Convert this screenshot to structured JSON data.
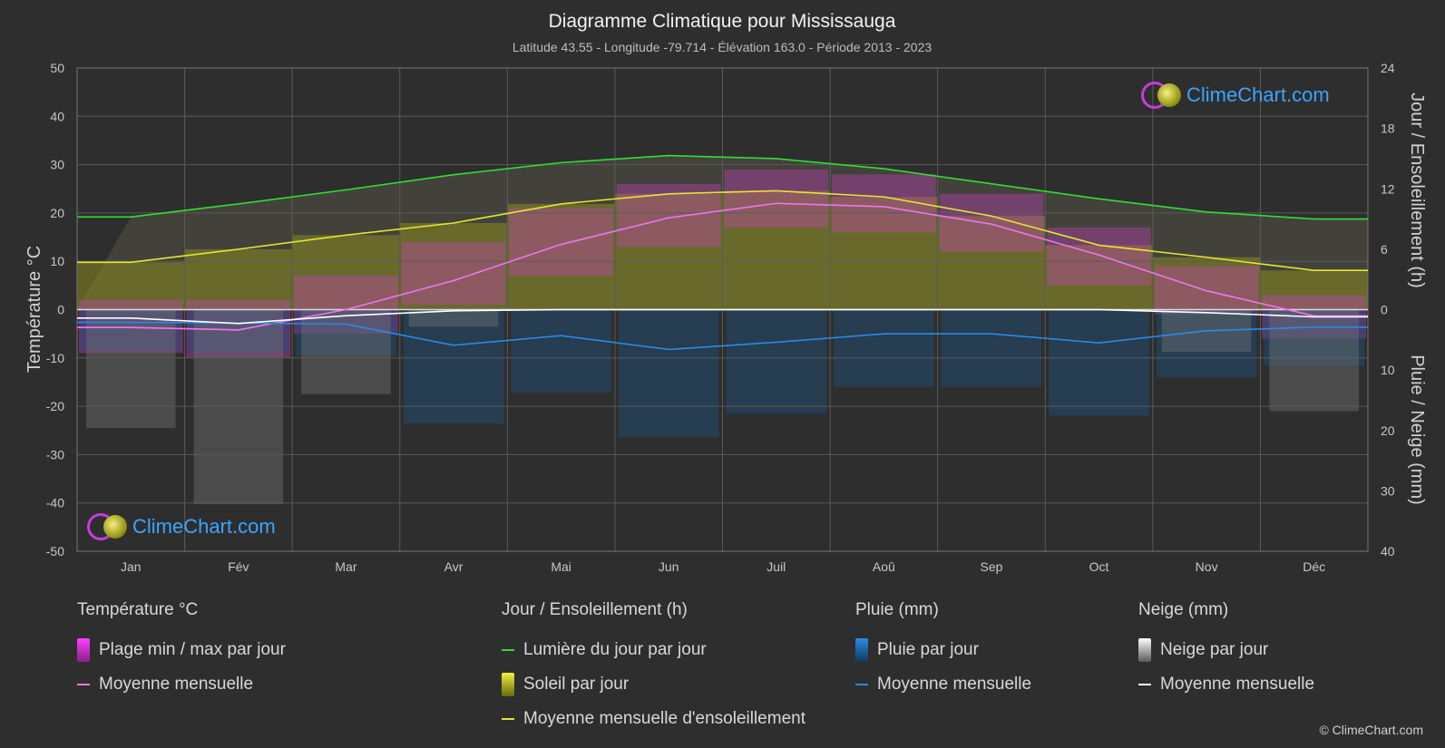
{
  "title": "Diagramme Climatique pour Mississauga",
  "subtitle": "Latitude 43.55 - Longitude -79.714 - Élévation 163.0 - Période 2013 - 2023",
  "axis_left_label": "Température °C",
  "axis_right_top_label": "Jour / Ensoleillement (h)",
  "axis_right_bottom_label": "Pluie / Neige (mm)",
  "logo_text": "ClimeChart.com",
  "copyright": "© ClimeChart.com",
  "legend": {
    "temp": {
      "title": "Température °C",
      "range": "Plage min / max par jour",
      "mean": "Moyenne mensuelle"
    },
    "sun": {
      "title": "Jour / Ensoleillement (h)",
      "daylight": "Lumière du jour par jour",
      "sunshine": "Soleil par jour",
      "mean": "Moyenne mensuelle d'ensoleillement"
    },
    "rain": {
      "title": "Pluie (mm)",
      "daily": "Pluie par jour",
      "mean": "Moyenne mensuelle"
    },
    "snow": {
      "title": "Neige (mm)",
      "daily": "Neige par jour",
      "mean": "Moyenne mensuelle"
    }
  },
  "colors": {
    "daylight": "#33dd33",
    "sunshine": "#e6e632",
    "temp_mean": "#ee77ee",
    "temp_range": "#d040c8",
    "rain": "#2a8be6",
    "snow": "#ffffff"
  },
  "chart_data": {
    "type": "line",
    "categories": [
      "Jan",
      "Fév",
      "Mar",
      "Avr",
      "Mai",
      "Jun",
      "Juil",
      "Aoû",
      "Sep",
      "Oct",
      "Nov",
      "Déc"
    ],
    "y_left": {
      "ticks": [
        50,
        40,
        30,
        20,
        10,
        0,
        -10,
        -20,
        -30,
        -40,
        -50
      ],
      "lim": [
        -50,
        50
      ]
    },
    "y_right_top": {
      "ticks": [
        24,
        18,
        12,
        6,
        0
      ],
      "lim": [
        0,
        24
      ]
    },
    "y_right_bottom": {
      "ticks": [
        0,
        10,
        20,
        30,
        40
      ],
      "lim": [
        0,
        40
      ]
    },
    "series": [
      {
        "name": "Lumière du jour par jour",
        "unit": "h",
        "values": [
          9.2,
          10.5,
          11.9,
          13.4,
          14.6,
          15.3,
          15.0,
          14.0,
          12.5,
          11.0,
          9.7,
          9.0
        ]
      },
      {
        "name": "Moyenne mensuelle d'ensoleillement",
        "unit": "h",
        "values": [
          4.7,
          6.0,
          7.4,
          8.6,
          10.5,
          11.5,
          11.8,
          11.2,
          9.3,
          6.4,
          5.2,
          3.9
        ]
      },
      {
        "name": "Moyenne mensuelle",
        "kind": "temperature",
        "unit": "°C",
        "values": [
          -3.7,
          -4.2,
          0.0,
          6.0,
          13.5,
          19.0,
          22.0,
          21.3,
          17.7,
          11.3,
          3.9,
          -1.3
        ]
      },
      {
        "name": "Moyenne mensuelle",
        "kind": "rain",
        "unit": "mm",
        "values": [
          2.1,
          2.2,
          2.4,
          5.9,
          4.3,
          6.6,
          5.4,
          4.0,
          4.0,
          5.5,
          3.5,
          2.9
        ]
      },
      {
        "name": "Moyenne mensuelle",
        "kind": "snow",
        "unit": "mm",
        "values": [
          1.4,
          2.3,
          1.0,
          0.2,
          0.0,
          0.0,
          0.0,
          0.0,
          0.0,
          0.0,
          0.5,
          1.2
        ]
      }
    ],
    "temp_daily_range": {
      "min": [
        -9,
        -10,
        -5,
        1,
        7,
        13,
        17,
        16,
        12,
        5,
        -1,
        -6
      ],
      "max": [
        2,
        2,
        7,
        14,
        21,
        26,
        29,
        28,
        24,
        17,
        9,
        3
      ]
    },
    "grid": true
  }
}
